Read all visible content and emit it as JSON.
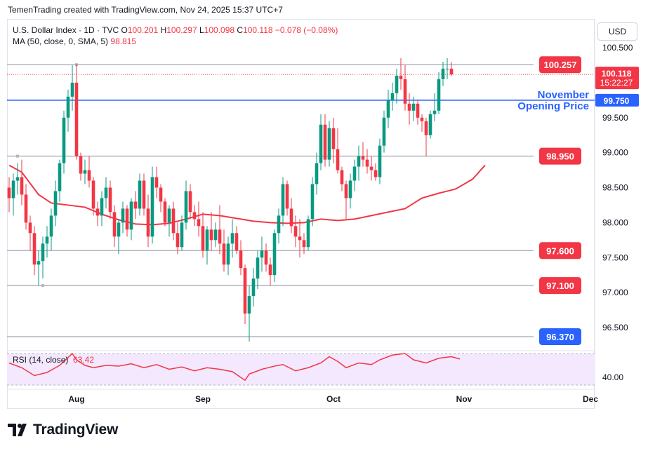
{
  "header": {
    "credit": "TemenTrading created with TradingView.com, Nov 24, 2025 15:37 UTC+7"
  },
  "legend": {
    "symbol": "U.S. Dollar Index · 1D · TVC",
    "o_label": "O",
    "o_value": "100.201",
    "h_label": "H",
    "h_value": "100.297",
    "l_label": "L",
    "l_value": "100.098",
    "c_label": "C",
    "c_value": "100.118",
    "change": "−0.078 (−0.08%)",
    "ma_label": "MA (50, close, 0, SMA, 5)",
    "ma_value": "98.815"
  },
  "currency_button": "USD",
  "annotation": {
    "line1": "November",
    "line2": "Opening Price"
  },
  "brand": "TradingView",
  "colors": {
    "up": "#089981",
    "down": "#f23645",
    "ma": "#f23645",
    "level_box": "#f23645",
    "blue": "#2962ff",
    "rsi": "#f23645",
    "rsi_band": "#f3e8fd"
  },
  "chart_data": {
    "type": "candlestick",
    "title": "U.S. Dollar Index · 1D · TVC",
    "ylim": [
      96.1,
      100.75
    ],
    "y_ticks": [
      "100.500",
      "100.000",
      "99.500",
      "99.000",
      "98.500",
      "98.000",
      "97.500",
      "97.000",
      "96.500"
    ],
    "y_tick_values": [
      100.5,
      100.0,
      99.5,
      99.0,
      98.5,
      98.0,
      97.5,
      97.0,
      96.5
    ],
    "x_ticks": [
      "Aug",
      "Sep",
      "Oct",
      "Nov",
      "Dec"
    ],
    "x_tick_index": [
      16,
      46,
      77,
      108,
      138
    ],
    "last_price_label": "100.118",
    "last_price": 100.118,
    "countdown": "15:22:27",
    "levels": [
      {
        "label": "100.257",
        "value": 100.257,
        "color": "#f23645"
      },
      {
        "label": "98.950",
        "value": 98.95,
        "color": "#f23645"
      },
      {
        "label": "97.600",
        "value": 97.6,
        "color": "#f23645"
      },
      {
        "label": "97.100",
        "value": 97.1,
        "color": "#f23645"
      },
      {
        "label": "96.370",
        "value": 96.37,
        "color": "#2962ff"
      }
    ],
    "nov_open": {
      "label": "99.750",
      "value": 99.75
    },
    "candles": [
      [
        98.5,
        98.65,
        98.15,
        98.35
      ],
      [
        98.35,
        98.7,
        98.1,
        98.6
      ],
      [
        98.6,
        98.85,
        98.4,
        98.65
      ],
      [
        98.65,
        98.9,
        98.25,
        98.4
      ],
      [
        98.4,
        98.55,
        97.9,
        98.0
      ],
      [
        98.0,
        98.1,
        97.6,
        97.85
      ],
      [
        97.85,
        97.95,
        97.25,
        97.4
      ],
      [
        97.4,
        97.6,
        97.1,
        97.45
      ],
      [
        97.45,
        97.8,
        97.2,
        97.7
      ],
      [
        97.7,
        97.95,
        97.5,
        97.8
      ],
      [
        97.8,
        98.2,
        97.6,
        98.1
      ],
      [
        98.1,
        98.6,
        97.95,
        98.45
      ],
      [
        98.45,
        98.9,
        98.3,
        98.85
      ],
      [
        98.85,
        99.6,
        98.7,
        99.5
      ],
      [
        99.5,
        99.9,
        99.3,
        99.8
      ],
      [
        99.8,
        100.25,
        99.6,
        100.0
      ],
      [
        100.0,
        100.27,
        98.9,
        98.95
      ],
      [
        98.95,
        99.0,
        98.6,
        98.7
      ],
      [
        98.7,
        98.9,
        98.55,
        98.75
      ],
      [
        98.75,
        98.95,
        98.5,
        98.6
      ],
      [
        98.6,
        98.65,
        98.1,
        98.2
      ],
      [
        98.2,
        98.3,
        97.95,
        98.1
      ],
      [
        98.1,
        98.45,
        97.95,
        98.35
      ],
      [
        98.35,
        98.65,
        98.2,
        98.5
      ],
      [
        98.5,
        98.6,
        98.05,
        98.15
      ],
      [
        98.15,
        98.25,
        97.65,
        97.8
      ],
      [
        97.8,
        98.05,
        97.55,
        98.0
      ],
      [
        98.0,
        98.3,
        97.85,
        98.2
      ],
      [
        98.2,
        98.25,
        97.8,
        97.9
      ],
      [
        97.9,
        98.35,
        97.75,
        98.3
      ],
      [
        98.3,
        98.45,
        98.05,
        98.2
      ],
      [
        98.2,
        98.7,
        98.1,
        98.6
      ],
      [
        98.6,
        98.7,
        98.1,
        98.2
      ],
      [
        98.2,
        98.4,
        97.65,
        97.8
      ],
      [
        97.8,
        98.8,
        97.7,
        98.65
      ],
      [
        98.65,
        98.8,
        98.35,
        98.5
      ],
      [
        98.5,
        98.55,
        98.15,
        98.3
      ],
      [
        98.3,
        98.35,
        97.95,
        98.0
      ],
      [
        98.0,
        98.25,
        97.8,
        98.2
      ],
      [
        98.2,
        98.3,
        97.75,
        97.85
      ],
      [
        97.85,
        98.0,
        97.55,
        97.65
      ],
      [
        97.65,
        98.1,
        97.6,
        98.0
      ],
      [
        98.0,
        98.6,
        97.9,
        98.45
      ],
      [
        98.45,
        98.55,
        98.05,
        98.15
      ],
      [
        98.15,
        98.25,
        97.95,
        98.05
      ],
      [
        98.05,
        98.3,
        97.8,
        97.95
      ],
      [
        97.95,
        98.15,
        97.5,
        97.6
      ],
      [
        97.6,
        97.95,
        97.4,
        97.9
      ],
      [
        97.9,
        98.15,
        97.6,
        97.75
      ],
      [
        97.75,
        98.0,
        97.65,
        97.9
      ],
      [
        97.9,
        98.25,
        97.55,
        97.7
      ],
      [
        97.7,
        97.9,
        97.3,
        97.4
      ],
      [
        97.4,
        97.8,
        97.25,
        97.7
      ],
      [
        97.7,
        98.05,
        97.5,
        97.85
      ],
      [
        97.85,
        97.95,
        97.55,
        97.6
      ],
      [
        97.6,
        97.75,
        97.25,
        97.35
      ],
      [
        97.35,
        97.4,
        96.55,
        96.7
      ],
      [
        96.7,
        97.1,
        96.3,
        96.95
      ],
      [
        96.95,
        97.35,
        96.8,
        97.2
      ],
      [
        97.2,
        97.6,
        97.05,
        97.5
      ],
      [
        97.5,
        97.8,
        97.3,
        97.6
      ],
      [
        97.6,
        97.7,
        97.3,
        97.4
      ],
      [
        97.4,
        97.5,
        97.1,
        97.25
      ],
      [
        97.25,
        97.9,
        97.15,
        97.85
      ],
      [
        97.85,
        98.2,
        97.7,
        98.1
      ],
      [
        98.1,
        98.65,
        97.95,
        98.55
      ],
      [
        98.55,
        98.6,
        98.1,
        98.2
      ],
      [
        98.2,
        98.35,
        97.85,
        97.95
      ],
      [
        97.95,
        98.1,
        97.65,
        97.8
      ],
      [
        97.8,
        98.05,
        97.5,
        97.75
      ],
      [
        97.75,
        97.85,
        97.55,
        97.65
      ],
      [
        97.65,
        98.1,
        97.6,
        98.05
      ],
      [
        98.05,
        98.65,
        97.95,
        98.55
      ],
      [
        98.55,
        99.0,
        98.4,
        98.85
      ],
      [
        98.85,
        99.55,
        98.75,
        99.4
      ],
      [
        99.4,
        99.55,
        98.8,
        98.9
      ],
      [
        98.9,
        99.45,
        98.8,
        99.35
      ],
      [
        99.35,
        99.5,
        98.85,
        99.05
      ],
      [
        99.05,
        99.35,
        98.7,
        98.75
      ],
      [
        98.75,
        98.8,
        98.45,
        98.55
      ],
      [
        98.55,
        98.6,
        98.05,
        98.35
      ],
      [
        98.35,
        98.7,
        98.2,
        98.6
      ],
      [
        98.6,
        98.9,
        98.45,
        98.8
      ],
      [
        98.8,
        99.1,
        98.6,
        98.95
      ],
      [
        98.95,
        99.15,
        98.8,
        98.9
      ],
      [
        98.9,
        99.05,
        98.7,
        98.8
      ],
      [
        98.8,
        98.95,
        98.6,
        98.75
      ],
      [
        98.75,
        98.85,
        98.6,
        98.65
      ],
      [
        98.65,
        99.2,
        98.55,
        99.1
      ],
      [
        99.1,
        99.6,
        99.0,
        99.5
      ],
      [
        99.5,
        99.9,
        99.35,
        99.75
      ],
      [
        99.75,
        100.0,
        99.6,
        99.85
      ],
      [
        99.85,
        100.2,
        99.7,
        100.1
      ],
      [
        100.1,
        100.35,
        99.9,
        100.05
      ],
      [
        100.05,
        100.25,
        99.6,
        99.7
      ],
      [
        99.7,
        99.85,
        99.4,
        99.6
      ],
      [
        99.6,
        99.8,
        99.45,
        99.7
      ],
      [
        99.7,
        99.75,
        99.4,
        99.5
      ],
      [
        99.5,
        99.55,
        99.3,
        99.45
      ],
      [
        99.45,
        99.5,
        98.95,
        99.25
      ],
      [
        99.25,
        99.6,
        99.2,
        99.55
      ],
      [
        99.55,
        99.85,
        99.45,
        99.6
      ],
      [
        99.6,
        100.15,
        99.55,
        100.05
      ],
      [
        100.05,
        100.3,
        99.95,
        100.2
      ],
      [
        100.2,
        100.35,
        100.05,
        100.2
      ],
      [
        100.2,
        100.297,
        100.098,
        100.118
      ]
    ],
    "ma_values": [
      [
        0,
        98.82
      ],
      [
        3,
        98.72
      ],
      [
        7,
        98.4
      ],
      [
        10,
        98.28
      ],
      [
        14,
        98.25
      ],
      [
        18,
        98.22
      ],
      [
        22,
        98.12
      ],
      [
        26,
        98.04
      ],
      [
        30,
        97.98
      ],
      [
        34,
        97.97
      ],
      [
        38,
        97.99
      ],
      [
        42,
        98.05
      ],
      [
        46,
        98.12
      ],
      [
        50,
        98.1
      ],
      [
        54,
        98.06
      ],
      [
        58,
        98.02
      ],
      [
        62,
        98.0
      ],
      [
        66,
        97.99
      ],
      [
        70,
        98.0
      ],
      [
        74,
        98.05
      ],
      [
        78,
        98.03
      ],
      [
        82,
        98.05
      ],
      [
        86,
        98.1
      ],
      [
        90,
        98.15
      ],
      [
        94,
        98.2
      ],
      [
        98,
        98.35
      ],
      [
        102,
        98.42
      ],
      [
        106,
        98.48
      ],
      [
        110,
        98.62
      ],
      [
        113,
        98.82
      ]
    ],
    "indicator": {
      "name": "RSI (14, close)",
      "value_label": "63.42",
      "ylim": [
        20,
        80
      ],
      "band": [
        30,
        70
      ],
      "tick_label": "40.00",
      "tick_value": 40,
      "values": [
        [
          0,
          58
        ],
        [
          3,
          52
        ],
        [
          6,
          42
        ],
        [
          9,
          46
        ],
        [
          12,
          55
        ],
        [
          15,
          70
        ],
        [
          16,
          62
        ],
        [
          18,
          55
        ],
        [
          20,
          52
        ],
        [
          23,
          55
        ],
        [
          26,
          54
        ],
        [
          29,
          57
        ],
        [
          32,
          52
        ],
        [
          35,
          56
        ],
        [
          38,
          50
        ],
        [
          41,
          53
        ],
        [
          44,
          48
        ],
        [
          47,
          52
        ],
        [
          50,
          50
        ],
        [
          53,
          47
        ],
        [
          56,
          36
        ],
        [
          57,
          44
        ],
        [
          60,
          50
        ],
        [
          63,
          54
        ],
        [
          65,
          56
        ],
        [
          68,
          48
        ],
        [
          71,
          52
        ],
        [
          74,
          58
        ],
        [
          76,
          66
        ],
        [
          78,
          60
        ],
        [
          80,
          52
        ],
        [
          83,
          58
        ],
        [
          86,
          56
        ],
        [
          88,
          62
        ],
        [
          91,
          68
        ],
        [
          94,
          70
        ],
        [
          96,
          62
        ],
        [
          99,
          58
        ],
        [
          102,
          64
        ],
        [
          105,
          66
        ],
        [
          107,
          63
        ]
      ]
    }
  }
}
